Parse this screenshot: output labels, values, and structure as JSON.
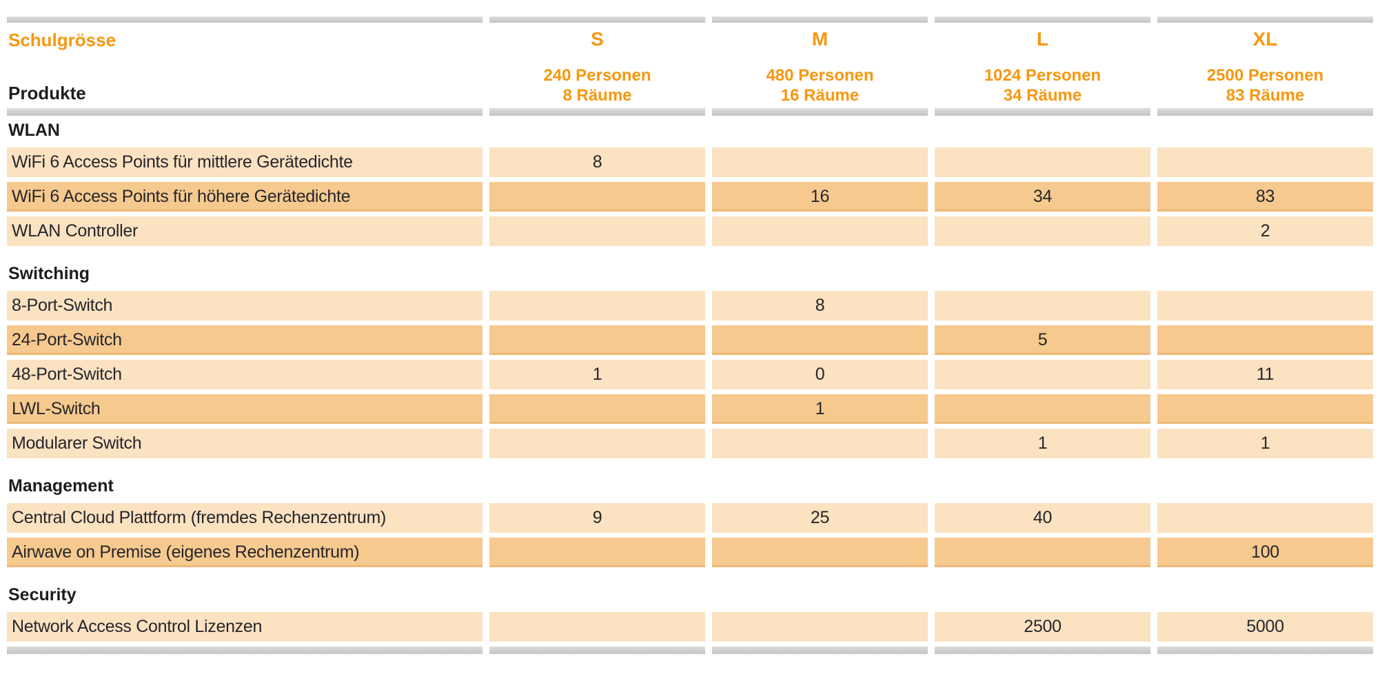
{
  "table": {
    "corner_title": "Schulgrösse",
    "products_label": "Produkte",
    "columns": [
      {
        "size": "S",
        "personen": "240 Personen",
        "raeume": "8 Räume"
      },
      {
        "size": "M",
        "personen": "480 Personen",
        "raeume": "16 Räume"
      },
      {
        "size": "L",
        "personen": "1024 Personen",
        "raeume": "34 Räume"
      },
      {
        "size": "XL",
        "personen": "2500 Personen",
        "raeume": "83 Räume"
      }
    ],
    "sections": [
      {
        "name": "WLAN",
        "rows": [
          {
            "label": "WiFi 6 Access Points für mittlere Gerätedichte",
            "values": [
              "8",
              "",
              "",
              ""
            ]
          },
          {
            "label": "WiFi 6 Access Points für höhere Gerätedichte",
            "values": [
              "",
              "16",
              "34",
              "83"
            ]
          },
          {
            "label": "WLAN Controller",
            "values": [
              "",
              "",
              "",
              "2"
            ]
          }
        ]
      },
      {
        "name": "Switching",
        "rows": [
          {
            "label": "8-Port-Switch",
            "values": [
              "",
              "8",
              "",
              ""
            ]
          },
          {
            "label": "24-Port-Switch",
            "values": [
              "",
              "",
              "5",
              ""
            ]
          },
          {
            "label": "48-Port-Switch",
            "values": [
              "1",
              "0",
              "",
              "11"
            ]
          },
          {
            "label": "LWL-Switch",
            "values": [
              "",
              "1",
              "",
              ""
            ]
          },
          {
            "label": "Modularer Switch",
            "values": [
              "",
              "",
              "1",
              "1"
            ]
          }
        ]
      },
      {
        "name": "Management",
        "rows": [
          {
            "label": "Central Cloud Plattform (fremdes Rechenzentrum)",
            "values": [
              "9",
              "25",
              "40",
              ""
            ]
          },
          {
            "label": "Airwave on Premise (eigenes Rechenzentrum)",
            "values": [
              "",
              "",
              "",
              "100"
            ]
          }
        ]
      },
      {
        "name": "Security",
        "rows": [
          {
            "label": "Network Access Control Lizenzen",
            "values": [
              "",
              "",
              "2500",
              "5000"
            ]
          }
        ]
      }
    ],
    "colors": {
      "accent_orange": "#F7970E",
      "row_light": "#FBE2C1",
      "row_dark": "#F6C98E",
      "row_dark_edge": "#EDB977",
      "divider_gray": "#C6C6C6",
      "text_dark": "#1D1D1B"
    }
  }
}
